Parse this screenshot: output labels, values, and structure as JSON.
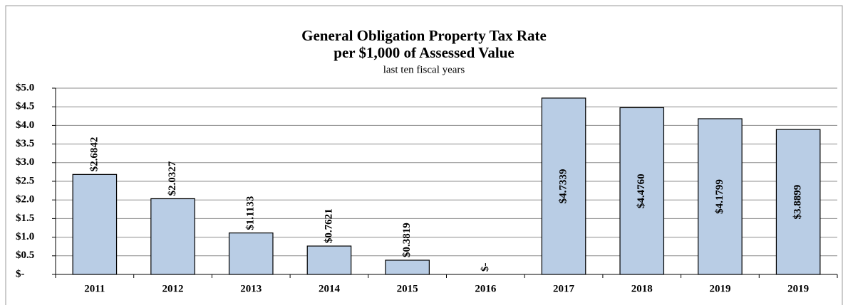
{
  "chart_data": {
    "type": "bar",
    "title": "General Obligation Property Tax Rate",
    "subtitle_bold": "per $1,000 of Assessed Value",
    "subtitle": "last ten fiscal years",
    "categories": [
      "2011",
      "2012",
      "2013",
      "2014",
      "2015",
      "2016",
      "2017",
      "2018",
      "2019",
      "2019"
    ],
    "values": [
      2.6842,
      2.0327,
      1.1133,
      0.7621,
      0.3819,
      0,
      4.7339,
      4.476,
      4.1799,
      3.8899
    ],
    "value_labels": [
      "$2.6842",
      "$2.0327",
      "$1.1133",
      "$0.7621",
      "$0.3819",
      "$-",
      "$4.7339",
      "$4.4760",
      "$4.1799",
      "$3.8899"
    ],
    "color": "#b9cde5",
    "ylim": [
      0,
      5
    ],
    "yticks": [
      {
        "value": 0,
        "label": "$-"
      },
      {
        "value": 0.5,
        "label": "$0.5"
      },
      {
        "value": 1,
        "label": "$1.0"
      },
      {
        "value": 1.5,
        "label": "$1.5"
      },
      {
        "value": 2,
        "label": "$2.0"
      },
      {
        "value": 2.5,
        "label": "$2.5"
      },
      {
        "value": 3,
        "label": "$3.0"
      },
      {
        "value": 3.5,
        "label": "$3.5"
      },
      {
        "value": 4,
        "label": "$4.0"
      },
      {
        "value": 4.5,
        "label": "$4.5"
      },
      {
        "value": 5,
        "label": "$5.0"
      }
    ],
    "grid": true
  }
}
